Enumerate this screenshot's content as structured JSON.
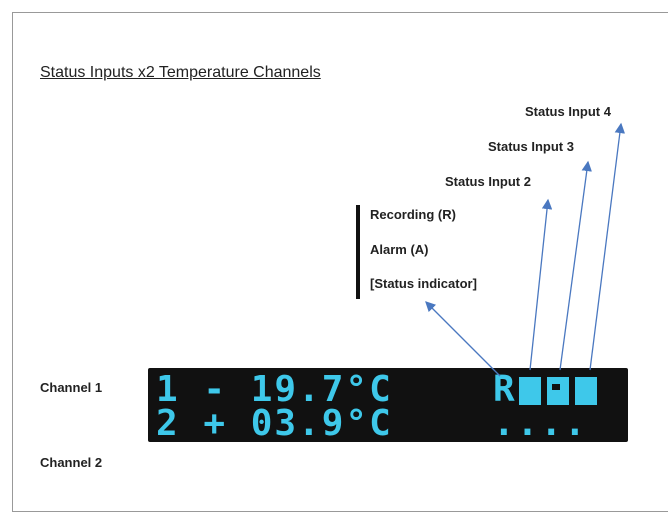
{
  "title": "Status Inputs x2 Temperature Channels",
  "labels": {
    "status_input_4": "Status Input 4",
    "status_input_3": "Status Input 3",
    "status_input_2": "Status Input 2",
    "recording": "Recording (R)",
    "alarm": "Alarm (A)",
    "status_indicator": "[Status indicator]"
  },
  "channels": [
    "Channel 1",
    "Channel 2"
  ],
  "display": {
    "line1": "1 - 19.7°C",
    "status1": "R",
    "line2": "2 + 03.9°C",
    "status2": "...."
  }
}
